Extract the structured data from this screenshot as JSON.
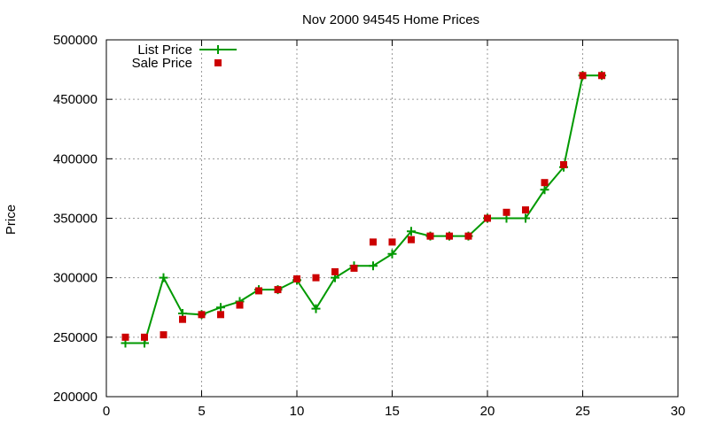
{
  "chart_data": {
    "type": "line",
    "title": "Nov 2000 94545 Home Prices",
    "xlabel": "",
    "ylabel": "Price",
    "xlim": [
      0,
      30
    ],
    "ylim": [
      200000,
      500000
    ],
    "xticks": [
      "0",
      "5",
      "10",
      "15",
      "20",
      "25",
      "30"
    ],
    "yticks": [
      "200000",
      "250000",
      "300000",
      "350000",
      "400000",
      "450000",
      "500000"
    ],
    "grid": true,
    "legend_position": "top-left",
    "series": [
      {
        "name": "List Price",
        "style": "line-with-plus-markers",
        "color": "#009900",
        "x": [
          1,
          2,
          3,
          4,
          5,
          6,
          7,
          8,
          9,
          10,
          11,
          12,
          13,
          14,
          15,
          16,
          17,
          18,
          19,
          20,
          21,
          22,
          23,
          24,
          25,
          26
        ],
        "values": [
          245000,
          245000,
          300000,
          270000,
          269000,
          275000,
          280000,
          290000,
          290000,
          298000,
          274000,
          300000,
          310000,
          310000,
          320000,
          339000,
          335000,
          335000,
          335000,
          350000,
          350000,
          350000,
          374000,
          393000,
          470000,
          470000
        ]
      },
      {
        "name": "Sale Price",
        "style": "square-markers",
        "color": "#cc0000",
        "x": [
          1,
          2,
          3,
          4,
          5,
          6,
          7,
          8,
          9,
          10,
          11,
          12,
          13,
          14,
          15,
          16,
          17,
          18,
          19,
          20,
          21,
          22,
          23,
          24,
          25,
          26
        ],
        "values": [
          250000,
          250000,
          252000,
          265000,
          269000,
          269000,
          277000,
          289000,
          290000,
          299000,
          300000,
          305000,
          308000,
          330000,
          330000,
          332000,
          335000,
          335000,
          335000,
          350000,
          355000,
          357000,
          380000,
          395000,
          470000,
          470000
        ]
      }
    ]
  }
}
